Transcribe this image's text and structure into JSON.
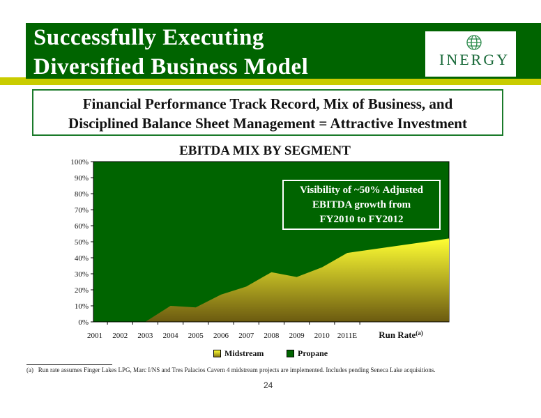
{
  "slide": {
    "title_line1": "Successfully Executing",
    "title_line2": "Diversified Business Model",
    "logo_text": "INERGY",
    "subtitle_line1": "Financial Performance Track Record, Mix of Business, and",
    "subtitle_line2": "Disciplined Balance Sheet Management = Attractive Investment",
    "callout_line1": "Visibility of ~50% Adjusted",
    "callout_line2": "EBITDA growth from",
    "callout_line3": "FY2010 to FY2012",
    "footnote_marker": "(a)",
    "footnote_text": "Run rate assumes Finger Lakes LPG, Marc I/NS and Tres Palacios Cavern 4 midstream projects are implemented.  Includes pending Seneca Lake acquisitions.",
    "page_number": "24",
    "colors": {
      "header_green": "#006400",
      "accent_yellow": "#c9cc00",
      "propane": "#006400",
      "midstream_top": "#ffff33",
      "midstream_bottom": "#6b5a10"
    }
  },
  "chart_data": {
    "type": "area",
    "title": "EBITDA MIX BY SEGMENT",
    "categories": [
      "2001",
      "2002",
      "2003",
      "2004",
      "2005",
      "2006",
      "2007",
      "2008",
      "2009",
      "2010",
      "2011E",
      "Run Rate"
    ],
    "run_rate_footnote": "(a)",
    "series": [
      {
        "name": "Midstream",
        "values": [
          0,
          0,
          0,
          10,
          9,
          17,
          22,
          31,
          28,
          34,
          43,
          52
        ]
      },
      {
        "name": "Propane",
        "values": [
          100,
          100,
          100,
          90,
          91,
          83,
          78,
          69,
          72,
          66,
          57,
          48
        ]
      }
    ],
    "stacked_percent": true,
    "ylim": [
      0,
      100
    ],
    "yticks": [
      "0%",
      "10%",
      "20%",
      "30%",
      "40%",
      "50%",
      "60%",
      "70%",
      "80%",
      "90%",
      "100%"
    ],
    "legend_position": "bottom",
    "grid": false
  }
}
